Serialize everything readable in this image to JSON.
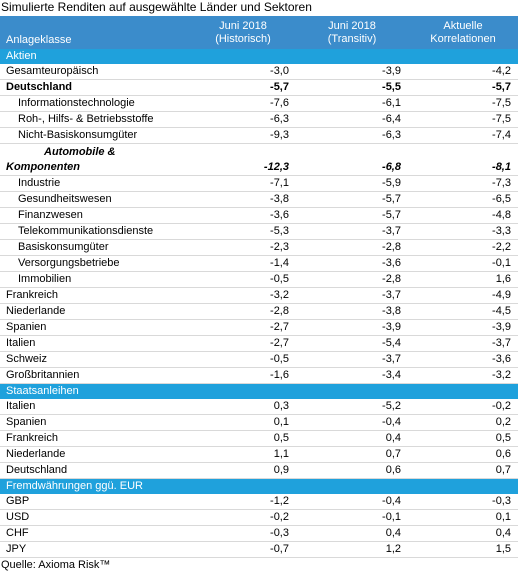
{
  "title": "Simulierte Renditen auf ausgewählte Länder und Sektoren",
  "table": {
    "columns": [
      "Anlageklasse",
      "Juni 2018\n(Historisch)",
      "Juni 2018\n(Transitiv)",
      "Aktuelle\nKorrelationen"
    ],
    "sections": [
      {
        "name": "Aktien",
        "rows": [
          {
            "label": "Gesamteuropäisch",
            "level": 0,
            "values": [
              "-3,0",
              "-3,9",
              "-4,2"
            ]
          },
          {
            "label": "Deutschland",
            "level": 0,
            "style": "bold",
            "values": [
              "-5,7",
              "-5,5",
              "-5,7"
            ]
          },
          {
            "label": "Informationstechnologie",
            "level": 1,
            "values": [
              "-7,6",
              "-6,1",
              "-7,5"
            ]
          },
          {
            "label": "Roh-, Hilfs- & Betriebsstoffe",
            "level": 1,
            "values": [
              "-6,3",
              "-6,4",
              "-7,5"
            ]
          },
          {
            "label": "Nicht-Basiskonsumgüter",
            "level": 1,
            "values": [
              "-9,3",
              "-6,3",
              "-7,4"
            ]
          },
          {
            "label": "Automobile & Komponenten",
            "level": 0,
            "style": "bolditalic",
            "values": [
              "-12,3",
              "-6,8",
              "-8,1"
            ]
          },
          {
            "label": "Industrie",
            "level": 1,
            "values": [
              "-7,1",
              "-5,9",
              "-7,3"
            ]
          },
          {
            "label": "Gesundheitswesen",
            "level": 1,
            "values": [
              "-3,8",
              "-5,7",
              "-6,5"
            ]
          },
          {
            "label": "Finanzwesen",
            "level": 1,
            "values": [
              "-3,6",
              "-5,7",
              "-4,8"
            ]
          },
          {
            "label": "Telekommunikationsdienste",
            "level": 1,
            "values": [
              "-5,3",
              "-3,7",
              "-3,3"
            ]
          },
          {
            "label": "Basiskonsumgüter",
            "level": 1,
            "values": [
              "-2,3",
              "-2,8",
              "-2,2"
            ]
          },
          {
            "label": "Versorgungsbetriebe",
            "level": 1,
            "values": [
              "-1,4",
              "-3,6",
              "-0,1"
            ]
          },
          {
            "label": "Immobilien",
            "level": 1,
            "values": [
              "-0,5",
              "-2,8",
              "1,6"
            ]
          },
          {
            "label": "Frankreich",
            "level": 0,
            "values": [
              "-3,2",
              "-3,7",
              "-4,9"
            ]
          },
          {
            "label": "Niederlande",
            "level": 0,
            "values": [
              "-2,8",
              "-3,8",
              "-4,5"
            ]
          },
          {
            "label": "Spanien",
            "level": 0,
            "values": [
              "-2,7",
              "-3,9",
              "-3,9"
            ]
          },
          {
            "label": "Italien",
            "level": 0,
            "values": [
              "-2,7",
              "-5,4",
              "-3,7"
            ]
          },
          {
            "label": "Schweiz",
            "level": 0,
            "values": [
              "-0,5",
              "-3,7",
              "-3,6"
            ]
          },
          {
            "label": "Großbritannien",
            "level": 0,
            "values": [
              "-1,6",
              "-3,4",
              "-3,2"
            ]
          }
        ]
      },
      {
        "name": "Staatsanleihen",
        "rows": [
          {
            "label": "Italien",
            "level": 0,
            "values": [
              "0,3",
              "-5,2",
              "-0,2"
            ]
          },
          {
            "label": "Spanien",
            "level": 0,
            "values": [
              "0,1",
              "-0,4",
              "0,2"
            ]
          },
          {
            "label": "Frankreich",
            "level": 0,
            "values": [
              "0,5",
              "0,4",
              "0,5"
            ]
          },
          {
            "label": "Niederlande",
            "level": 0,
            "values": [
              "1,1",
              "0,7",
              "0,6"
            ]
          },
          {
            "label": "Deutschland",
            "level": 0,
            "values": [
              "0,9",
              "0,6",
              "0,7"
            ]
          }
        ]
      },
      {
        "name": "Fremdwährungen ggü. EUR",
        "rows": [
          {
            "label": "GBP",
            "level": 0,
            "values": [
              "-1,2",
              "-0,4",
              "-0,3"
            ]
          },
          {
            "label": "USD",
            "level": 0,
            "values": [
              "-0,2",
              "-0,1",
              "0,1"
            ]
          },
          {
            "label": "CHF",
            "level": 0,
            "values": [
              "-0,3",
              "0,4",
              "0,4"
            ]
          },
          {
            "label": "JPY",
            "level": 0,
            "values": [
              "-0,7",
              "1,2",
              "1,5"
            ]
          }
        ]
      }
    ]
  },
  "source": "Quelle: Axioma Risk™"
}
